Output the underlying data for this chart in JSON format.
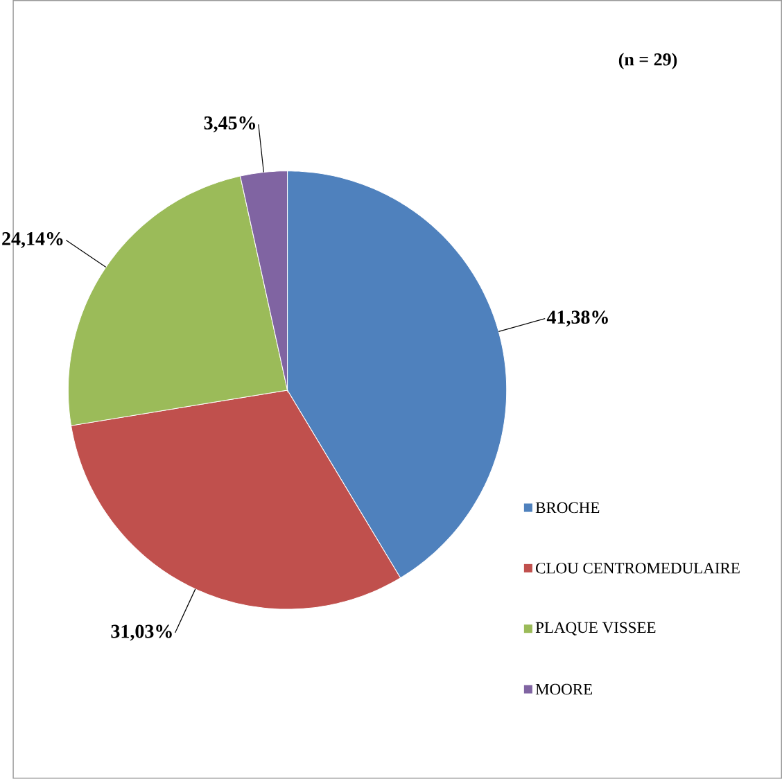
{
  "chart_data": {
    "type": "pie",
    "title": "(n = 29)",
    "categories": [
      "BROCHE",
      "CLOU CENTROMEDULAIRE",
      "PLAQUE VISSEE",
      "MOORE"
    ],
    "values": [
      41.38,
      31.03,
      24.14,
      3.45
    ],
    "colors": [
      "#4f81bd",
      "#c0504d",
      "#9bbb59",
      "#8064a2"
    ],
    "value_labels": [
      "41,38%",
      "31,03%",
      "24,14%",
      "3,45%"
    ],
    "legend": "right"
  }
}
